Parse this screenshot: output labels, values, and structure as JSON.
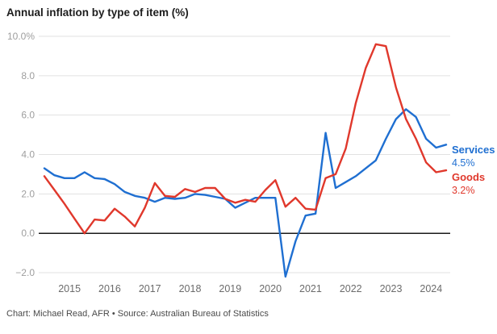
{
  "title": "Annual inflation by type of item (%)",
  "footer": "Chart: Michael Read, AFR • Source: Australian Bureau of Statistics",
  "colors": {
    "services": "#1f6fd1",
    "goods": "#e0382c",
    "grid": "#e1e1e1",
    "zero_line": "#1a1a1a",
    "ytick_text": "#9e9e9e",
    "xtick_text": "#6b6b6b",
    "title_text": "#1d1d1d",
    "footer_text": "#4a4a4a"
  },
  "series_labels": {
    "services": {
      "name": "Services",
      "value": "4.5%"
    },
    "goods": {
      "name": "Goods",
      "value": "3.2%"
    }
  },
  "chart_data": {
    "type": "line",
    "title": "Annual inflation by type of item (%)",
    "xlabel": "",
    "ylabel": "",
    "ylim": [
      -2.0,
      10.0
    ],
    "grid": true,
    "legend_position": "right-end-labels",
    "yticks": [
      "10.0%",
      "8.0",
      "6.0",
      "4.0",
      "2.0",
      "0.0",
      "−2.0"
    ],
    "ytick_values": [
      10,
      8,
      6,
      4,
      2,
      0,
      -2
    ],
    "xticks": [
      "2015",
      "2016",
      "2017",
      "2018",
      "2019",
      "2020",
      "2021",
      "2022",
      "2023",
      "2024"
    ],
    "x": [
      "2014 Q2",
      "2014 Q3",
      "2014 Q4",
      "2015 Q1",
      "2015 Q2",
      "2015 Q3",
      "2015 Q4",
      "2016 Q1",
      "2016 Q2",
      "2016 Q3",
      "2016 Q4",
      "2017 Q1",
      "2017 Q2",
      "2017 Q3",
      "2017 Q4",
      "2018 Q1",
      "2018 Q2",
      "2018 Q3",
      "2018 Q4",
      "2019 Q1",
      "2019 Q2",
      "2019 Q3",
      "2019 Q4",
      "2020 Q1",
      "2020 Q2",
      "2020 Q3",
      "2020 Q4",
      "2021 Q1",
      "2021 Q2",
      "2021 Q3",
      "2021 Q4",
      "2022 Q1",
      "2022 Q2",
      "2022 Q3",
      "2022 Q4",
      "2023 Q1",
      "2023 Q2",
      "2023 Q3",
      "2023 Q4",
      "2024 Q1",
      "2024 Q2"
    ],
    "series": [
      {
        "name": "Services",
        "color": "#1f6fd1",
        "end_label_value": "4.5%",
        "values": [
          3.3,
          2.95,
          2.8,
          2.8,
          3.1,
          2.8,
          2.75,
          2.5,
          2.1,
          1.9,
          1.8,
          1.6,
          1.8,
          1.75,
          1.8,
          2.0,
          1.95,
          1.85,
          1.75,
          1.3,
          1.55,
          1.8,
          1.8,
          1.8,
          -2.2,
          -0.4,
          0.9,
          1.0,
          5.1,
          2.3,
          2.6,
          2.9,
          3.3,
          3.7,
          4.8,
          5.8,
          6.3,
          5.9,
          4.8,
          4.35,
          4.5
        ]
      },
      {
        "name": "Goods",
        "color": "#e0382c",
        "end_label_value": "3.2%",
        "values": [
          2.9,
          2.2,
          1.5,
          0.75,
          0.0,
          0.7,
          0.65,
          1.25,
          0.85,
          0.35,
          1.3,
          2.55,
          1.9,
          1.85,
          2.25,
          2.1,
          2.3,
          2.3,
          1.75,
          1.55,
          1.7,
          1.6,
          2.2,
          2.7,
          1.35,
          1.8,
          1.25,
          1.2,
          2.8,
          3.0,
          4.3,
          6.6,
          8.4,
          9.6,
          9.5,
          7.4,
          5.8,
          4.8,
          3.6,
          3.1,
          3.2
        ]
      }
    ]
  }
}
